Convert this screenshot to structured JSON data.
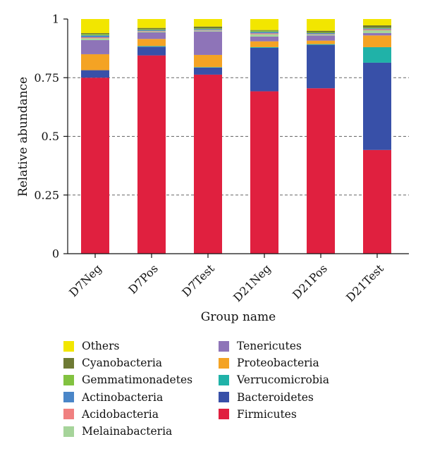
{
  "chart_data": {
    "type": "bar",
    "stacked": true,
    "title": "",
    "xlabel": "Group name",
    "ylabel": "Relative abundance",
    "ylim": [
      0,
      1
    ],
    "yticks": [
      "0",
      "0.25",
      "0.5",
      "0.75",
      "1"
    ],
    "grid": "horizontal dashed",
    "legend_position": "bottom",
    "categories": [
      "D7Neg",
      "D7Pos",
      "D7Test",
      "D21Neg",
      "D21Pos",
      "D21Test"
    ],
    "series": [
      {
        "name": "Firmicutes",
        "color": "#e0203f",
        "values": [
          0.75,
          0.845,
          0.763,
          0.692,
          0.705,
          0.442
        ]
      },
      {
        "name": "Bacteroidetes",
        "color": "#3850a8",
        "values": [
          0.032,
          0.037,
          0.03,
          0.185,
          0.185,
          0.372
        ]
      },
      {
        "name": "Verrucomicrobia",
        "color": "#20b2a8",
        "values": [
          0.0,
          0.003,
          0.002,
          0.003,
          0.003,
          0.066
        ]
      },
      {
        "name": "Proteobacteria",
        "color": "#f4a324",
        "values": [
          0.068,
          0.03,
          0.052,
          0.025,
          0.015,
          0.05
        ]
      },
      {
        "name": "Tenericutes",
        "color": "#8e74b8",
        "values": [
          0.06,
          0.028,
          0.1,
          0.02,
          0.022,
          0.01
        ]
      },
      {
        "name": "Melainabacteria",
        "color": "#a6d49a",
        "values": [
          0.008,
          0.004,
          0.004,
          0.01,
          0.004,
          0.012
        ]
      },
      {
        "name": "Acidobacteria",
        "color": "#f08080",
        "values": [
          0.004,
          0.002,
          0.002,
          0.004,
          0.002,
          0.004
        ]
      },
      {
        "name": "Actinobacteria",
        "color": "#4a86c8",
        "values": [
          0.008,
          0.004,
          0.004,
          0.006,
          0.004,
          0.004
        ]
      },
      {
        "name": "Gemmatimonadetes",
        "color": "#82c240",
        "values": [
          0.006,
          0.003,
          0.003,
          0.005,
          0.003,
          0.003
        ]
      },
      {
        "name": "Cyanobacteria",
        "color": "#6e7a34",
        "values": [
          0.004,
          0.006,
          0.008,
          0.003,
          0.007,
          0.01
        ]
      },
      {
        "name": "Others",
        "color": "#f2e600",
        "values": [
          0.06,
          0.038,
          0.032,
          0.047,
          0.05,
          0.027
        ]
      }
    ]
  },
  "legend": {
    "column1": [
      {
        "label": "Others",
        "color": "#f2e600"
      },
      {
        "label": "Cyanobacteria",
        "color": "#6e7a34"
      },
      {
        "label": "Gemmatimonadetes",
        "color": "#82c240"
      },
      {
        "label": "Actinobacteria",
        "color": "#4a86c8"
      },
      {
        "label": "Acidobacteria",
        "color": "#f08080"
      },
      {
        "label": "Melainabacteria",
        "color": "#a6d49a"
      }
    ],
    "column2": [
      {
        "label": "Tenericutes",
        "color": "#8e74b8"
      },
      {
        "label": "Proteobacteria",
        "color": "#f4a324"
      },
      {
        "label": "Verrucomicrobia",
        "color": "#20b2a8"
      },
      {
        "label": "Bacteroidetes",
        "color": "#3850a8"
      },
      {
        "label": "Firmicutes",
        "color": "#e0203f"
      }
    ]
  }
}
